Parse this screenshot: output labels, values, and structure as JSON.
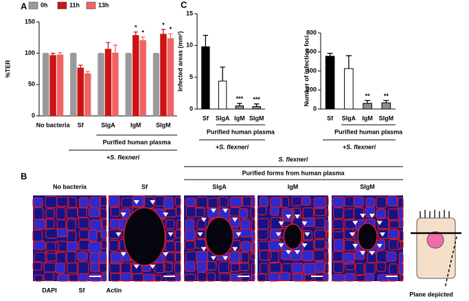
{
  "panels": {
    "a": "A",
    "b": "B",
    "c": "C"
  },
  "chart_data": [
    {
      "type": "bar",
      "ylabel": "%TER",
      "categories": [
        "No bacteria",
        "Sf",
        "SIgA",
        "IgM",
        "SIgM"
      ],
      "series": [
        {
          "name": "0h",
          "color": "#9a9a9a",
          "values": [
            100,
            100,
            100,
            100,
            100
          ],
          "errors": [
            0,
            0,
            0,
            0,
            0
          ]
        },
        {
          "name": "11h",
          "color": "#cc1414",
          "values": [
            97,
            77,
            107,
            129,
            131
          ],
          "errors": [
            3,
            4,
            10,
            5,
            7
          ],
          "significance": [
            null,
            null,
            null,
            "*",
            "*"
          ]
        },
        {
          "name": "13h",
          "color": "#f06464",
          "values": [
            98,
            68,
            101,
            121,
            124
          ],
          "errors": [
            3,
            3,
            12,
            5,
            7
          ],
          "significance": [
            null,
            null,
            null,
            "*",
            "*"
          ]
        }
      ],
      "ylim": [
        0,
        150
      ],
      "yticks": [
        0,
        50,
        100,
        150
      ],
      "legend": "top",
      "annotations": [
        "Purified human plasma",
        "+S. flexneri"
      ]
    },
    {
      "type": "bar",
      "ylabel": "Infected areas (mm²)",
      "categories": [
        "Sf",
        "SIgA",
        "IgM",
        "SIgM"
      ],
      "values": [
        9.8,
        4.4,
        0.5,
        0.4
      ],
      "errors": [
        1.8,
        2.2,
        0.4,
        0.4
      ],
      "colors": [
        "#000000",
        "#ffffff",
        "#8c8c8c",
        "#8c8c8c"
      ],
      "significance": [
        null,
        null,
        "***",
        "***"
      ],
      "ylim": [
        0,
        15
      ],
      "yticks": [
        0,
        5,
        10,
        15
      ],
      "annotations": [
        "Purified human plasma",
        "+S. flexneri"
      ]
    },
    {
      "type": "bar",
      "ylabel": "Number of infection foci",
      "categories": [
        "Sf",
        "SIgA",
        "IgM",
        "SIgM"
      ],
      "values": [
        555,
        425,
        60,
        65
      ],
      "errors": [
        30,
        135,
        30,
        25
      ],
      "colors": [
        "#000000",
        "#ffffff",
        "#8c8c8c",
        "#8c8c8c"
      ],
      "significance": [
        null,
        null,
        "**",
        "**"
      ],
      "ylim": [
        0,
        800
      ],
      "yticks": [
        0,
        200,
        400,
        600,
        800
      ],
      "annotations": [
        "Purified human plasma",
        "+S. flexneri"
      ]
    }
  ],
  "images": {
    "group_label": "S. flexneri",
    "subgroup_label": "Purified forms from human plasma",
    "titles": [
      "No bacteria",
      "Sf",
      "SIgA",
      "IgM",
      "SIgM"
    ],
    "stains": [
      {
        "name": "DAPI",
        "color": "#2020e0"
      },
      {
        "name": "Sf",
        "color": "#20b020"
      },
      {
        "name": "Actin",
        "color": "#e01010"
      }
    ],
    "diagram_label": "Plane depicted"
  }
}
